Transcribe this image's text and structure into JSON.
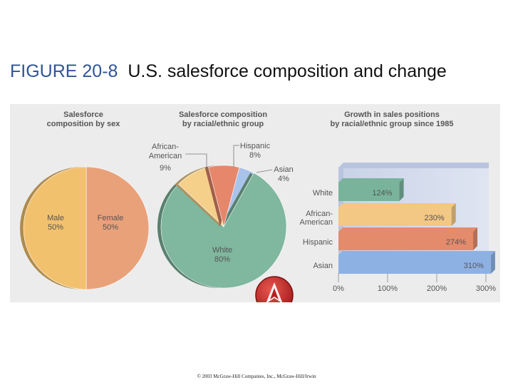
{
  "title": {
    "figure": "FIGURE 20-8",
    "text": "U.S. salesforce composition and change"
  },
  "footer": "© 2003 McGraw-Hill Companies, Inc., McGraw-Hill/Irwin",
  "chart_data": [
    {
      "type": "pie",
      "title": [
        "Salesforce",
        "composition by sex"
      ],
      "slices": [
        {
          "label": "Male",
          "value": 50,
          "value_text": "50%",
          "color": "#f2c16e"
        },
        {
          "label": "Female",
          "value": 50,
          "value_text": "50%",
          "color": "#e9a17a"
        }
      ]
    },
    {
      "type": "pie",
      "title": [
        "Salesforce composition",
        "by racial/ethnic group"
      ],
      "slices": [
        {
          "label": "White",
          "value": 80,
          "value_text": "80%",
          "color": "#7fb79f"
        },
        {
          "label": "African-American",
          "label_lines": [
            "African-",
            "American"
          ],
          "value": 9,
          "value_text": "9%",
          "color": "#f5d08a"
        },
        {
          "label": "Hispanic",
          "value": 8,
          "value_text": "8%",
          "color": "#e6876b"
        },
        {
          "label": "Asian",
          "value": 4,
          "value_text": "4%",
          "color": "#a9c3ea"
        }
      ]
    },
    {
      "type": "bar",
      "orientation": "horizontal",
      "title": [
        "Growth in sales positions",
        "by racial/ethnic group since 1985"
      ],
      "categories": [
        "White",
        "African-American",
        "Hispanic",
        "Asian"
      ],
      "category_lines": [
        [
          "White"
        ],
        [
          "African-",
          "American"
        ],
        [
          "Hispanic"
        ],
        [
          "Asian"
        ]
      ],
      "values": [
        124,
        230,
        274,
        310
      ],
      "value_labels": [
        "124%",
        "230%",
        "274%",
        "310%"
      ],
      "colors": [
        "#79b39c",
        "#f3c784",
        "#e48b6c",
        "#8db1e3"
      ],
      "xlim": [
        0,
        300
      ],
      "xticks": [
        0,
        100,
        200,
        300
      ],
      "xtick_labels": [
        "0%",
        "100%",
        "200%",
        "300%"
      ]
    }
  ],
  "logo": {
    "name": "mcgraw-hill-logo"
  }
}
